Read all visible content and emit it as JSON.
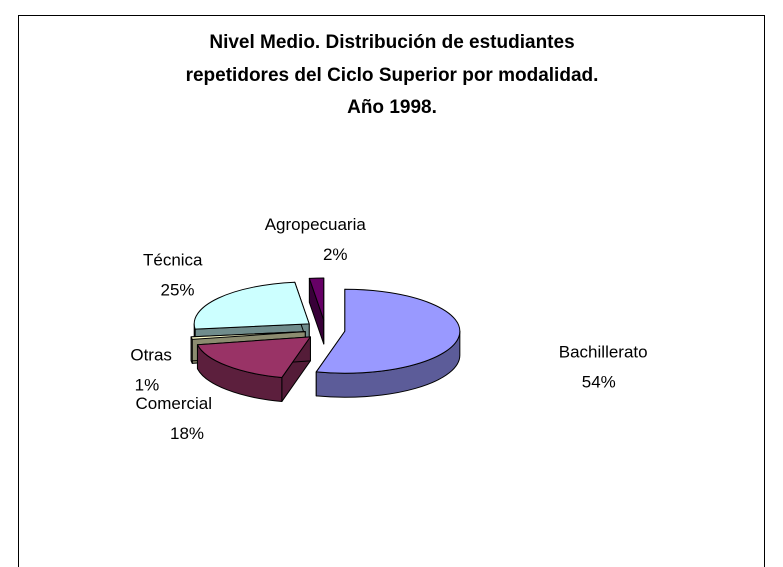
{
  "chart_data": {
    "type": "pie3d",
    "title": [
      "Nivel Medio. Distribución de estudiantes",
      "repetidores del Ciclo Superior por modalidad.",
      "Año 1998."
    ],
    "categories": [
      "Bachillerato",
      "Comercial",
      "Otras",
      "Técnica",
      "Agropecuaria"
    ],
    "values": [
      54,
      18,
      1,
      25,
      2
    ],
    "value_labels": [
      "54%",
      "18%",
      "1%",
      "25%",
      "2%"
    ],
    "colors": [
      "#9999ff",
      "#993366",
      "#ffffcc",
      "#ccffff",
      "#660066"
    ]
  }
}
